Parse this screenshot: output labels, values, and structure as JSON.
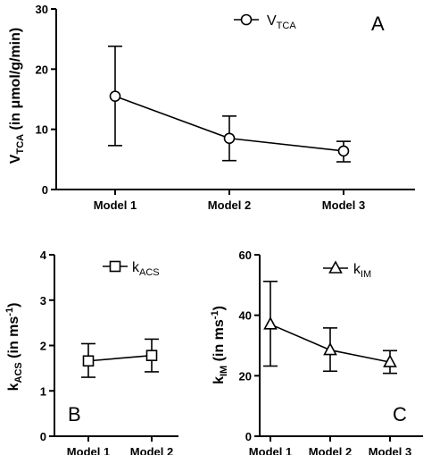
{
  "chart_data": [
    {
      "type": "line",
      "panel_label": "A",
      "categories": [
        "Model 1",
        "Model 2",
        "Model 3"
      ],
      "ylim": [
        0,
        30
      ],
      "yticks": [
        0,
        10,
        20,
        30
      ],
      "ylabel": {
        "main": "V",
        "sub": "TCA",
        "rest": " (in μmol/g/min)"
      },
      "legend": {
        "main": "V",
        "sub": "TCA",
        "marker": "circle",
        "position": "top-right"
      },
      "series": [
        {
          "values": [
            15.5,
            8.5,
            6.4
          ],
          "error_low": [
            7.3,
            4.8,
            4.6
          ],
          "error_high": [
            23.8,
            12.2,
            8.0
          ]
        }
      ],
      "grid": false
    },
    {
      "type": "line",
      "panel_label": "B",
      "categories": [
        "Model 1",
        "Model 2"
      ],
      "ylim": [
        0,
        4
      ],
      "yticks": [
        0,
        1,
        2,
        3,
        4
      ],
      "ylabel": {
        "main": "k",
        "sub": "ACS",
        "rest": " (in ms",
        "sup": "-1",
        "end": ")"
      },
      "legend": {
        "main": "k",
        "sub": "ACS",
        "marker": "square",
        "position": "top-right"
      },
      "series": [
        {
          "values": [
            1.66,
            1.78
          ],
          "error_low": [
            1.3,
            1.42
          ],
          "error_high": [
            2.04,
            2.14
          ]
        }
      ],
      "grid": false
    },
    {
      "type": "line",
      "panel_label": "C",
      "categories": [
        "Model 1",
        "Model 2",
        "Model 3"
      ],
      "ylim": [
        0,
        60
      ],
      "yticks": [
        0,
        20,
        40,
        60
      ],
      "ylabel": {
        "main": "k",
        "sub": "IM",
        "rest": " (in ms",
        "sup": "-1",
        "end": ")"
      },
      "legend": {
        "main": "k",
        "sub": "IM",
        "marker": "triangle",
        "position": "top-right"
      },
      "series": [
        {
          "values": [
            37.0,
            28.5,
            24.5
          ],
          "error_low": [
            23.2,
            21.5,
            20.8
          ],
          "error_high": [
            51.2,
            35.8,
            28.3
          ]
        }
      ],
      "grid": false
    }
  ]
}
